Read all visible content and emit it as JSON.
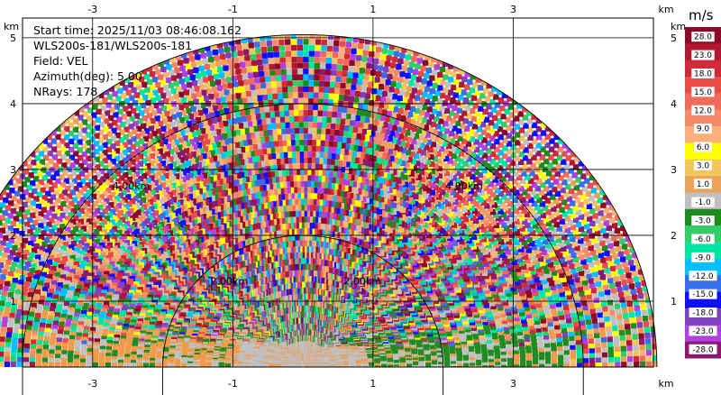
{
  "chart_data": {
    "type": "heatmap",
    "title": "",
    "info": {
      "start_time": "Start time: 2025/11/03 08:46:08.162",
      "instrument": "WLS200s-181/WLS200s-181",
      "field": "Field: VEL",
      "azimuth": "Azimuth(deg): 5.00",
      "nrays": "NRays: 178"
    },
    "x_axis": {
      "unit_label": "km",
      "xlim": [
        -4.0,
        5.0
      ],
      "ticks": [
        -3,
        -1,
        1,
        3
      ],
      "tick_labels": [
        "-3",
        "-1",
        "1",
        "3"
      ]
    },
    "y_axis": {
      "unit_label": "km",
      "ylim": [
        0,
        5.3
      ],
      "ticks": [
        1,
        2,
        3,
        4,
        5
      ],
      "tick_labels": [
        "1",
        "2",
        "3",
        "4",
        "5"
      ]
    },
    "grid": true,
    "range_rings_km": [
      2,
      4
    ],
    "range_ring_labels": [
      "2.00km",
      "2.00km",
      "4.00km",
      "4.00km"
    ],
    "max_range_km": 5.05,
    "colorbar": {
      "unit": "m/s",
      "labels": [
        "28.0",
        "23.0",
        "18.0",
        "15.0",
        "12.0",
        "9.0",
        "6.0",
        "3.0",
        "1.0",
        "-1.0",
        "-3.0",
        "-6.0",
        "-9.0",
        "-12.0",
        "-15.0",
        "-18.0",
        "-23.0",
        "-28.0"
      ],
      "colors": [
        "#8b0a2a",
        "#b01830",
        "#d12a3a",
        "#e94d4a",
        "#f16a5a",
        "#f58a6a",
        "#fbb07a",
        "#ffff00",
        "#f3c65b",
        "#eba35a",
        "#c0c0c0",
        "#1f8b1f",
        "#33cc66",
        "#00e5a0",
        "#00bfff",
        "#3a6ee8",
        "#1010ff",
        "#7f3fbf",
        "#b040e0",
        "#8b1a6e"
      ]
    },
    "near_surface_colors": {
      "positive": "#f09a4a",
      "zero": "#c0c0c0",
      "negative": "#228b22"
    }
  }
}
